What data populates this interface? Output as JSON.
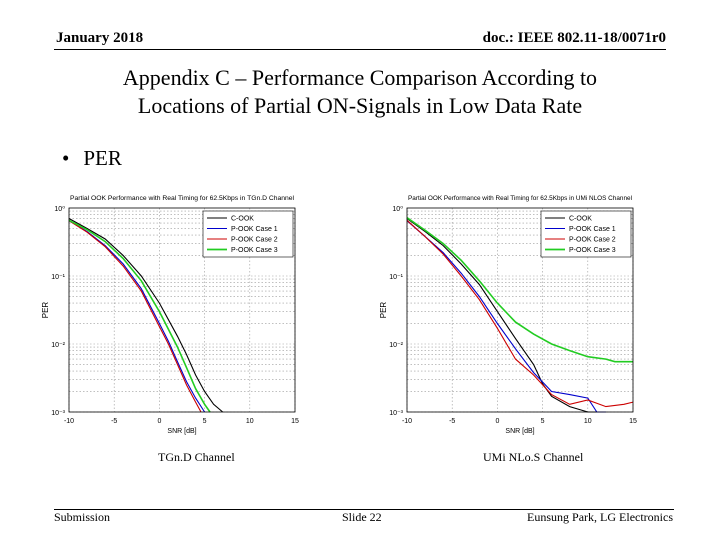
{
  "header": {
    "left": "January 2018",
    "right": "doc.: IEEE 802.11-18/0071r0"
  },
  "title": {
    "line1": "Appendix C – Performance Comparison According to",
    "line2": "Locations of Partial ON-Signals in Low Data Rate"
  },
  "bullet": {
    "symbol": "•",
    "text": "PER"
  },
  "captions": {
    "left": "TGn.D Channel",
    "right": "UMi NLo.S Channel"
  },
  "footer": {
    "left": "Submission",
    "center": "Slide 22",
    "right": "Eunsung Park, LG Electronics"
  },
  "chart_data": [
    {
      "type": "line",
      "title": "Partial OOK Performance with Real Timing for 62.5Kbps in TGn.D Channel",
      "xlabel": "SNR [dB]",
      "ylabel": "PER",
      "yscale": "log",
      "xlim": [
        -10,
        15
      ],
      "ylim": [
        0.001,
        1
      ],
      "xticks": [
        -10,
        -5,
        0,
        5,
        10,
        15
      ],
      "xtick_labels": [
        "-10",
        "-5",
        "0",
        "5",
        "10",
        "15"
      ],
      "ytick_labels": [
        "10⁰",
        "10⁻¹",
        "10⁻²",
        "10⁻³"
      ],
      "legend_position": "top-right",
      "grid": true,
      "series": [
        {
          "name": "C-OOK",
          "color": "#000000",
          "x": [
            -10,
            -8,
            -6,
            -4,
            -2,
            0,
            2,
            3,
            4,
            5,
            6,
            7
          ],
          "y": [
            0.7,
            0.5,
            0.35,
            0.2,
            0.1,
            0.04,
            0.013,
            0.007,
            0.0035,
            0.002,
            0.0013,
            0.001
          ]
        },
        {
          "name": "P-OOK Case 1",
          "color": "#0000cc",
          "x": [
            -10,
            -8,
            -6,
            -4,
            -2,
            0,
            1,
            2,
            3,
            4,
            5
          ],
          "y": [
            0.65,
            0.45,
            0.28,
            0.15,
            0.065,
            0.02,
            0.011,
            0.0055,
            0.0028,
            0.0016,
            0.001
          ]
        },
        {
          "name": "P-OOK Case 2",
          "color": "#cc0000",
          "x": [
            -10,
            -8,
            -6,
            -4,
            -2,
            0,
            1,
            2,
            3,
            4,
            4.6
          ],
          "y": [
            0.65,
            0.44,
            0.27,
            0.14,
            0.06,
            0.018,
            0.01,
            0.005,
            0.0025,
            0.0014,
            0.001
          ]
        },
        {
          "name": "P-OOK Case 3",
          "color": "#22cc22",
          "x": [
            -10,
            -8,
            -6,
            -4,
            -2,
            0,
            2,
            3,
            4,
            5,
            5.6
          ],
          "y": [
            0.66,
            0.48,
            0.32,
            0.18,
            0.085,
            0.03,
            0.009,
            0.0045,
            0.0022,
            0.0013,
            0.001
          ]
        }
      ]
    },
    {
      "type": "line",
      "title": "Partial OOK Performance with Real Timing for 62.5Kbps in UMi NLOS Channel",
      "xlabel": "SNR [dB]",
      "ylabel": "PER",
      "yscale": "log",
      "xlim": [
        -10,
        15
      ],
      "ylim": [
        0.001,
        1
      ],
      "xticks": [
        -10,
        -5,
        0,
        5,
        10,
        15
      ],
      "xtick_labels": [
        "-10",
        "-5",
        "0",
        "5",
        "10",
        "15"
      ],
      "ytick_labels": [
        "10⁰",
        "10⁻¹",
        "10⁻²",
        "10⁻³"
      ],
      "legend_position": "top-right",
      "grid": true,
      "series": [
        {
          "name": "C-OOK",
          "color": "#000000",
          "x": [
            -10,
            -8,
            -6,
            -4,
            -2,
            0,
            2,
            4,
            5,
            6,
            8,
            10,
            11
          ],
          "y": [
            0.7,
            0.45,
            0.28,
            0.15,
            0.075,
            0.03,
            0.012,
            0.005,
            0.0026,
            0.0017,
            0.0012,
            0.001,
            0.001
          ]
        },
        {
          "name": "P-OOK Case 1",
          "color": "#0000cc",
          "x": [
            -10,
            -8,
            -6,
            -4,
            -2,
            0,
            2,
            4,
            6,
            8,
            10,
            11,
            12
          ],
          "y": [
            0.65,
            0.38,
            0.22,
            0.11,
            0.05,
            0.02,
            0.0085,
            0.0038,
            0.002,
            0.0018,
            0.0016,
            0.001,
            0.001
          ]
        },
        {
          "name": "P-OOK Case 2",
          "color": "#cc0000",
          "x": [
            -10,
            -8,
            -6,
            -4,
            -2,
            0,
            2,
            4,
            6,
            8,
            10,
            12,
            14,
            15
          ],
          "y": [
            0.66,
            0.38,
            0.21,
            0.1,
            0.045,
            0.017,
            0.006,
            0.0035,
            0.0018,
            0.0013,
            0.0015,
            0.0012,
            0.0013,
            0.0014
          ]
        },
        {
          "name": "P-OOK Case 3",
          "color": "#22cc22",
          "x": [
            -10,
            -8,
            -6,
            -4,
            -2,
            0,
            2,
            4,
            6,
            8,
            10,
            12,
            13,
            14,
            15
          ],
          "y": [
            0.72,
            0.47,
            0.3,
            0.17,
            0.085,
            0.04,
            0.021,
            0.014,
            0.01,
            0.008,
            0.0065,
            0.006,
            0.0055,
            0.0055,
            0.0055
          ]
        }
      ]
    }
  ]
}
